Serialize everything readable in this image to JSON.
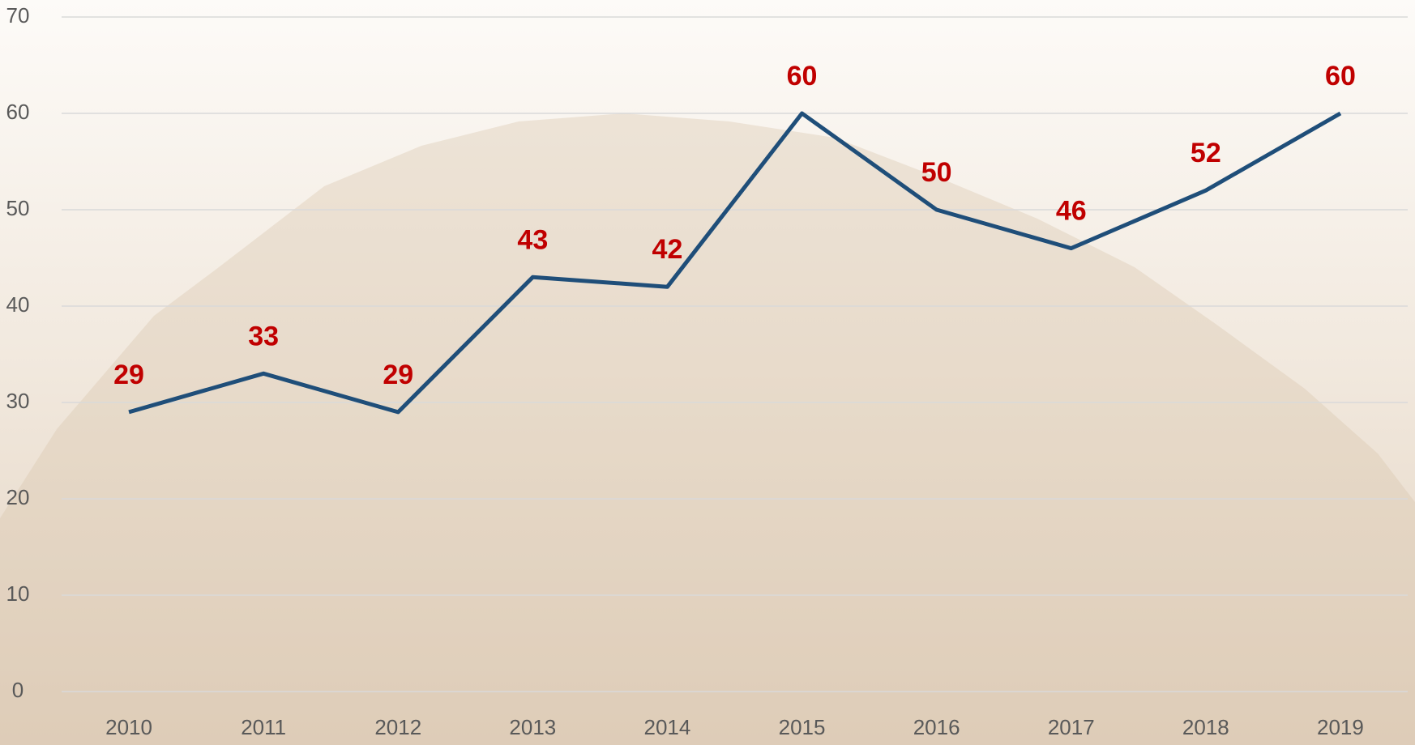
{
  "chart_data": {
    "type": "line",
    "categories": [
      "2010",
      "2011",
      "2012",
      "2013",
      "2014",
      "2015",
      "2016",
      "2017",
      "2018",
      "2019"
    ],
    "series": [
      {
        "color": "#1f4e79",
        "values": [
          29,
          33,
          29,
          43,
          42,
          60,
          50,
          46,
          52,
          60
        ]
      }
    ],
    "label_color": "#c00000",
    "ylim": [
      0,
      70
    ],
    "yticks": [
      0,
      10,
      20,
      30,
      40,
      50,
      60,
      70
    ],
    "grid": true
  }
}
